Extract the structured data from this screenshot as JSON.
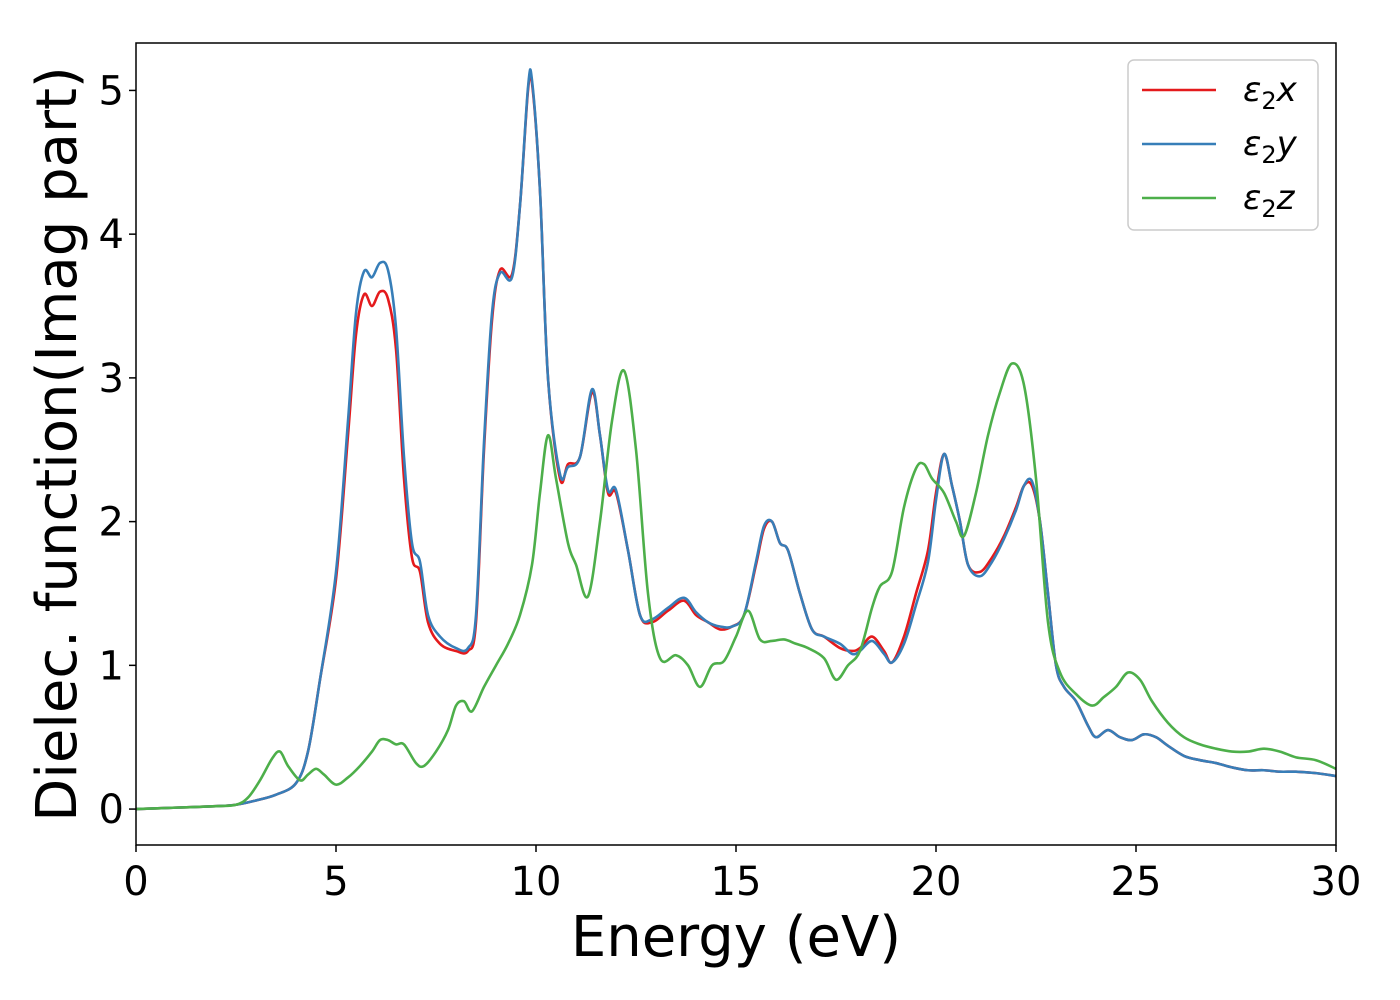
{
  "chart_data": {
    "type": "line",
    "xlabel": "Energy (eV)",
    "ylabel": "Dielec. function(Imag part)",
    "xlim": [
      0,
      30
    ],
    "ylim": [
      -0.25,
      5.33
    ],
    "xticks": [
      0,
      5,
      10,
      15,
      20,
      25,
      30
    ],
    "yticks": [
      0,
      1,
      2,
      3,
      4,
      5
    ],
    "grid": false,
    "legend_position": "top-right",
    "series": [
      {
        "name_base": "ε",
        "name_sub": "2",
        "name_suffix": "x",
        "color": "#e41a1c",
        "x": [
          0,
          1,
          2,
          2.5,
          3,
          3.5,
          4,
          4.3,
          4.6,
          5,
          5.3,
          5.5,
          5.7,
          5.9,
          6.1,
          6.3,
          6.5,
          6.7,
          6.9,
          7.1,
          7.3,
          7.6,
          8,
          8.3,
          8.5,
          8.7,
          8.9,
          9.1,
          9.4,
          9.6,
          9.8,
          9.9,
          10.1,
          10.3,
          10.6,
          10.8,
          11.1,
          11.4,
          11.6,
          11.8,
          12,
          12.3,
          12.6,
          12.9,
          13.3,
          13.7,
          14,
          14.3,
          14.6,
          14.9,
          15.2,
          15.5,
          15.7,
          15.9,
          16.1,
          16.3,
          16.6,
          16.9,
          17.2,
          17.6,
          17.9,
          18.1,
          18.4,
          18.7,
          18.9,
          19.2,
          19.5,
          19.8,
          20.0,
          20.2,
          20.4,
          20.6,
          20.8,
          21.1,
          21.4,
          21.7,
          22.0,
          22.2,
          22.4,
          22.6,
          22.8,
          23.0,
          23.2,
          23.5,
          23.8,
          24.0,
          24.3,
          24.6,
          24.9,
          25.2,
          25.5,
          25.8,
          26.2,
          26.6,
          27.0,
          27.4,
          27.8,
          28.2,
          28.6,
          29,
          29.5,
          30
        ],
        "y": [
          0,
          0.01,
          0.02,
          0.03,
          0.06,
          0.1,
          0.18,
          0.4,
          0.9,
          1.6,
          2.6,
          3.3,
          3.58,
          3.5,
          3.6,
          3.55,
          3.2,
          2.3,
          1.75,
          1.65,
          1.3,
          1.15,
          1.1,
          1.1,
          1.3,
          2.5,
          3.4,
          3.75,
          3.72,
          4.2,
          5.0,
          5.05,
          4.3,
          3.0,
          2.3,
          2.4,
          2.45,
          2.9,
          2.6,
          2.2,
          2.2,
          1.8,
          1.35,
          1.3,
          1.38,
          1.45,
          1.35,
          1.3,
          1.25,
          1.27,
          1.35,
          1.7,
          1.95,
          2.0,
          1.85,
          1.8,
          1.5,
          1.25,
          1.2,
          1.12,
          1.1,
          1.12,
          1.2,
          1.1,
          1.02,
          1.2,
          1.5,
          1.8,
          2.2,
          2.47,
          2.25,
          2.0,
          1.7,
          1.65,
          1.75,
          1.9,
          2.1,
          2.25,
          2.25,
          2.0,
          1.5,
          1.0,
          0.85,
          0.75,
          0.58,
          0.5,
          0.55,
          0.5,
          0.48,
          0.52,
          0.5,
          0.44,
          0.37,
          0.34,
          0.32,
          0.29,
          0.27,
          0.27,
          0.26,
          0.26,
          0.25,
          0.23
        ]
      },
      {
        "name_base": "ε",
        "name_sub": "2",
        "name_suffix": "y",
        "color": "#377eb8",
        "x": [
          0,
          1,
          2,
          2.5,
          3,
          3.5,
          4,
          4.3,
          4.6,
          5,
          5.3,
          5.5,
          5.7,
          5.9,
          6.1,
          6.3,
          6.5,
          6.7,
          6.9,
          7.1,
          7.3,
          7.6,
          8,
          8.3,
          8.5,
          8.7,
          8.9,
          9.1,
          9.4,
          9.6,
          9.8,
          9.9,
          10.1,
          10.3,
          10.6,
          10.8,
          11.1,
          11.4,
          11.6,
          11.8,
          12,
          12.3,
          12.6,
          12.9,
          13.3,
          13.7,
          14,
          14.3,
          14.6,
          14.9,
          15.2,
          15.5,
          15.7,
          15.9,
          16.1,
          16.3,
          16.6,
          16.9,
          17.2,
          17.6,
          17.9,
          18.1,
          18.4,
          18.7,
          18.9,
          19.2,
          19.5,
          19.8,
          20.0,
          20.2,
          20.4,
          20.6,
          20.8,
          21.1,
          21.4,
          21.7,
          22.0,
          22.2,
          22.4,
          22.6,
          22.8,
          23.0,
          23.2,
          23.5,
          23.8,
          24.0,
          24.3,
          24.6,
          24.9,
          25.2,
          25.5,
          25.8,
          26.2,
          26.6,
          27.0,
          27.4,
          27.8,
          28.2,
          28.6,
          29,
          29.5,
          30
        ],
        "y": [
          0,
          0.01,
          0.02,
          0.03,
          0.06,
          0.1,
          0.18,
          0.4,
          0.9,
          1.65,
          2.7,
          3.45,
          3.74,
          3.7,
          3.8,
          3.75,
          3.35,
          2.45,
          1.85,
          1.72,
          1.35,
          1.2,
          1.12,
          1.12,
          1.35,
          2.55,
          3.45,
          3.73,
          3.7,
          4.2,
          5.02,
          5.07,
          4.3,
          3.0,
          2.33,
          2.38,
          2.45,
          2.92,
          2.6,
          2.22,
          2.22,
          1.8,
          1.35,
          1.32,
          1.4,
          1.47,
          1.37,
          1.3,
          1.27,
          1.27,
          1.35,
          1.72,
          1.97,
          2.0,
          1.85,
          1.8,
          1.5,
          1.25,
          1.2,
          1.15,
          1.08,
          1.1,
          1.17,
          1.08,
          1.02,
          1.15,
          1.42,
          1.72,
          2.15,
          2.47,
          2.25,
          2.0,
          1.7,
          1.62,
          1.72,
          1.88,
          2.08,
          2.25,
          2.28,
          2.0,
          1.5,
          1.0,
          0.85,
          0.75,
          0.58,
          0.5,
          0.55,
          0.5,
          0.48,
          0.52,
          0.5,
          0.44,
          0.37,
          0.34,
          0.32,
          0.29,
          0.27,
          0.27,
          0.26,
          0.26,
          0.25,
          0.23
        ]
      },
      {
        "name_base": "ε",
        "name_sub": "2",
        "name_suffix": "z",
        "color": "#4daf4a",
        "x": [
          0,
          1,
          2,
          2.5,
          2.8,
          3.1,
          3.4,
          3.6,
          3.8,
          4.1,
          4.3,
          4.5,
          4.7,
          5,
          5.3,
          5.6,
          5.9,
          6.1,
          6.3,
          6.5,
          6.7,
          7.0,
          7.2,
          7.5,
          7.8,
          8.0,
          8.2,
          8.4,
          8.7,
          9,
          9.3,
          9.6,
          9.9,
          10.1,
          10.3,
          10.5,
          10.8,
          11.0,
          11.3,
          11.6,
          11.9,
          12.2,
          12.5,
          12.8,
          13.1,
          13.5,
          13.8,
          14.1,
          14.4,
          14.7,
          15.0,
          15.3,
          15.6,
          15.9,
          16.2,
          16.5,
          16.8,
          17.2,
          17.5,
          17.8,
          18.1,
          18.4,
          18.6,
          18.9,
          19.2,
          19.5,
          19.7,
          19.9,
          20.2,
          20.5,
          20.7,
          21.0,
          21.3,
          21.6,
          21.9,
          22.2,
          22.5,
          22.8,
          23.1,
          23.5,
          23.9,
          24.2,
          24.5,
          24.8,
          25.1,
          25.4,
          25.8,
          26.2,
          26.6,
          27,
          27.4,
          27.8,
          28.2,
          28.6,
          29,
          29.5,
          30
        ],
        "y": [
          0,
          0.01,
          0.02,
          0.03,
          0.08,
          0.2,
          0.35,
          0.4,
          0.3,
          0.2,
          0.24,
          0.28,
          0.24,
          0.17,
          0.22,
          0.3,
          0.4,
          0.48,
          0.48,
          0.45,
          0.45,
          0.32,
          0.3,
          0.4,
          0.55,
          0.72,
          0.75,
          0.68,
          0.85,
          1.0,
          1.15,
          1.35,
          1.7,
          2.2,
          2.6,
          2.3,
          1.85,
          1.7,
          1.48,
          2.0,
          2.7,
          3.05,
          2.5,
          1.5,
          1.05,
          1.07,
          1.0,
          0.85,
          1.0,
          1.03,
          1.2,
          1.38,
          1.18,
          1.17,
          1.18,
          1.15,
          1.12,
          1.05,
          0.9,
          1.0,
          1.1,
          1.4,
          1.55,
          1.65,
          2.1,
          2.37,
          2.4,
          2.3,
          2.2,
          2.0,
          1.9,
          2.2,
          2.6,
          2.9,
          3.1,
          2.95,
          2.3,
          1.3,
          0.95,
          0.8,
          0.72,
          0.78,
          0.85,
          0.95,
          0.9,
          0.75,
          0.6,
          0.5,
          0.45,
          0.42,
          0.4,
          0.4,
          0.42,
          0.4,
          0.36,
          0.34,
          0.28
        ]
      }
    ]
  }
}
